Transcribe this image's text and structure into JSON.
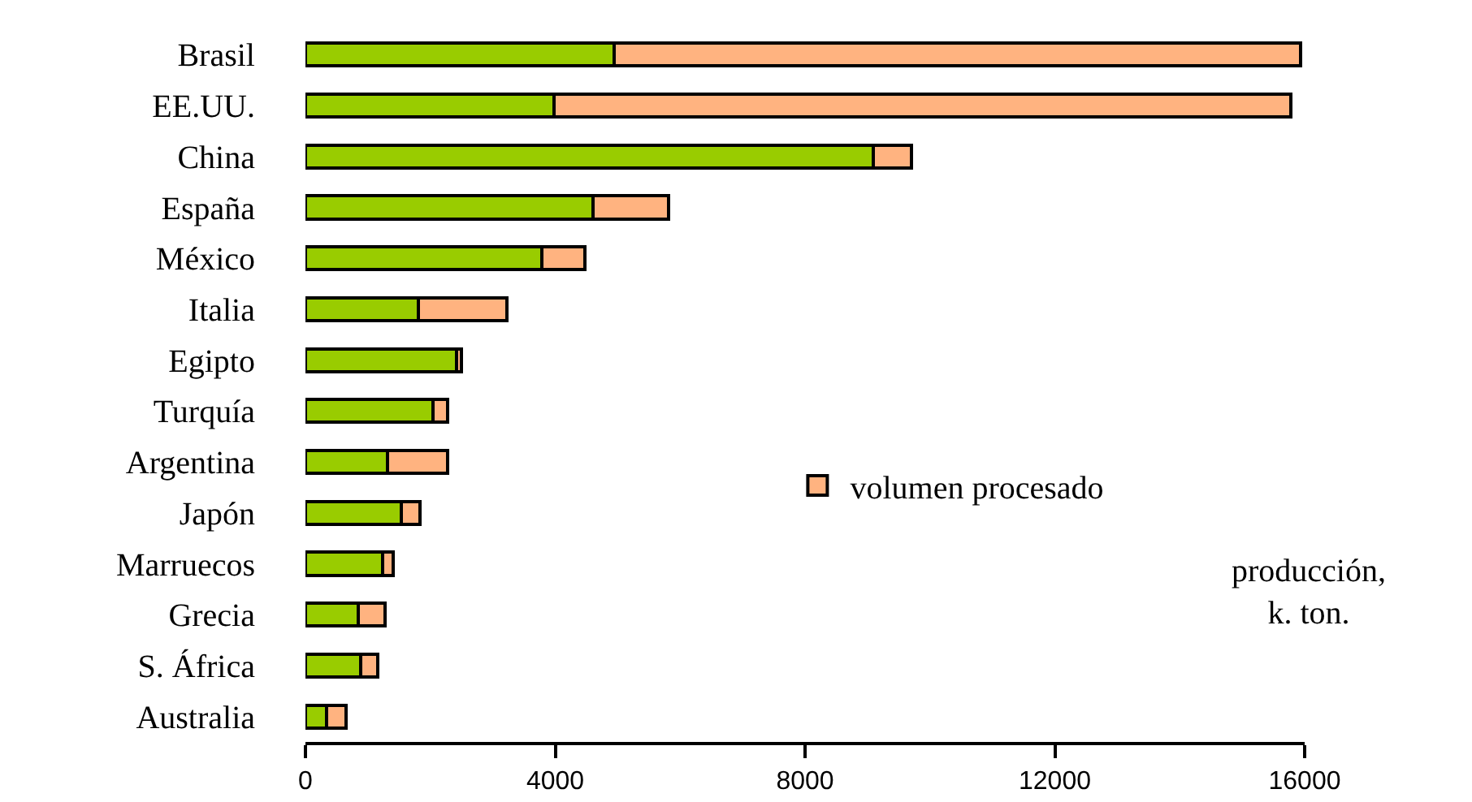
{
  "chart_data": {
    "type": "bar",
    "orientation": "horizontal",
    "stacked": true,
    "xlabel": "producción,\nk. ton.",
    "categories": [
      "Brasil",
      "EE.UU.",
      "China",
      "España",
      "México",
      "Italia",
      "Egipto",
      "Turquía",
      "Argentina",
      "Japón",
      "Marruecos",
      "Grecia",
      "S. África",
      "Australia"
    ],
    "series": [
      {
        "color": "#99cc00",
        "values": [
          4940,
          3980,
          9090,
          4600,
          3780,
          1810,
          2420,
          2040,
          1310,
          1530,
          1230,
          850,
          890,
          340
        ]
      },
      {
        "name": "volumen procesado",
        "color": "#ffb380",
        "values": [
          11000,
          11800,
          610,
          1210,
          700,
          1420,
          80,
          230,
          960,
          300,
          170,
          420,
          270,
          310
        ]
      }
    ],
    "xlim": [
      0,
      16000
    ],
    "xticks": [
      0,
      4000,
      8000,
      12000,
      16000
    ],
    "grid": false,
    "legend": "right"
  }
}
